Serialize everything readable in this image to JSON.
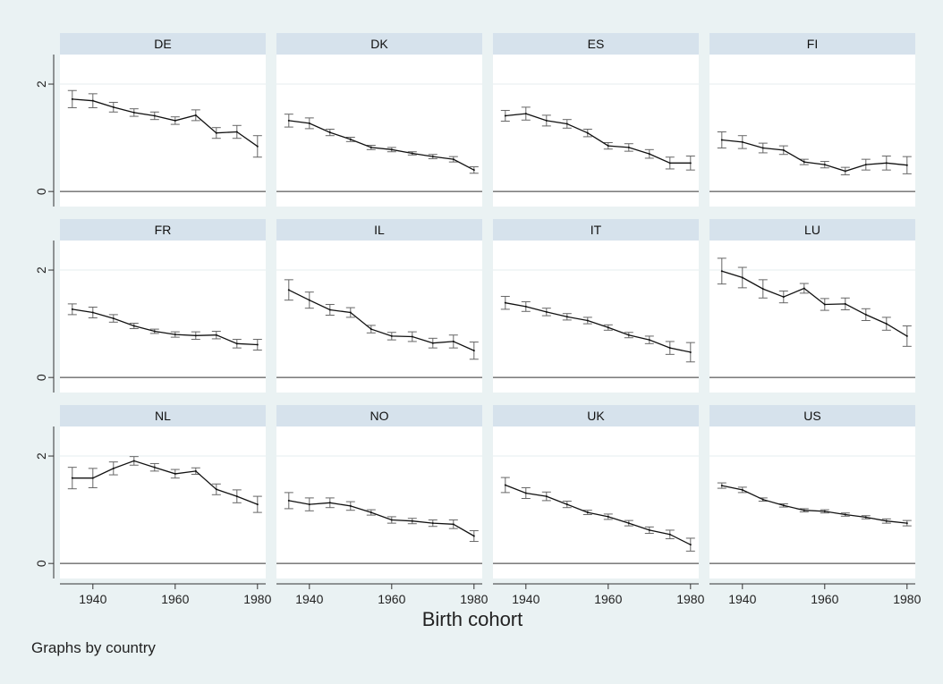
{
  "chart_data": {
    "type": "line",
    "xlabel": "Birth cohort",
    "note": "Graphs by country",
    "x": [
      1935,
      1940,
      1945,
      1950,
      1955,
      1960,
      1965,
      1970,
      1975,
      1980
    ],
    "xticks": [
      1940,
      1960,
      1980
    ],
    "xlim": [
      1932,
      1982
    ],
    "yticks": [
      0,
      2
    ],
    "ylim": [
      -0.28,
      2.55
    ],
    "grid": true,
    "error_bars": true,
    "panels": [
      {
        "name": "DE",
        "values": [
          1.72,
          1.69,
          1.57,
          1.47,
          1.41,
          1.32,
          1.42,
          1.09,
          1.11,
          0.84
        ],
        "lower": [
          1.56,
          1.56,
          1.48,
          1.4,
          1.34,
          1.25,
          1.32,
          0.99,
          0.99,
          0.64
        ],
        "upper": [
          1.88,
          1.82,
          1.66,
          1.54,
          1.48,
          1.39,
          1.52,
          1.19,
          1.23,
          1.04
        ]
      },
      {
        "name": "DK",
        "values": [
          1.32,
          1.27,
          1.1,
          0.97,
          0.82,
          0.78,
          0.71,
          0.65,
          0.6,
          0.4
        ],
        "lower": [
          1.2,
          1.17,
          1.04,
          0.93,
          0.78,
          0.74,
          0.68,
          0.61,
          0.55,
          0.34
        ],
        "upper": [
          1.44,
          1.37,
          1.16,
          1.01,
          0.86,
          0.82,
          0.74,
          0.69,
          0.65,
          0.46
        ]
      },
      {
        "name": "ES",
        "values": [
          1.41,
          1.45,
          1.32,
          1.26,
          1.09,
          0.85,
          0.82,
          0.7,
          0.53,
          0.53
        ],
        "lower": [
          1.31,
          1.33,
          1.22,
          1.18,
          1.02,
          0.79,
          0.75,
          0.62,
          0.42,
          0.4
        ],
        "upper": [
          1.51,
          1.57,
          1.42,
          1.34,
          1.16,
          0.91,
          0.89,
          0.78,
          0.64,
          0.66
        ]
      },
      {
        "name": "FI",
        "values": [
          0.96,
          0.92,
          0.81,
          0.77,
          0.55,
          0.5,
          0.38,
          0.5,
          0.53,
          0.49
        ],
        "lower": [
          0.81,
          0.8,
          0.72,
          0.69,
          0.5,
          0.44,
          0.31,
          0.4,
          0.4,
          0.33
        ],
        "upper": [
          1.11,
          1.04,
          0.9,
          0.85,
          0.6,
          0.56,
          0.45,
          0.6,
          0.66,
          0.65
        ]
      },
      {
        "name": "FR",
        "values": [
          1.27,
          1.21,
          1.1,
          0.96,
          0.86,
          0.8,
          0.78,
          0.79,
          0.63,
          0.61
        ],
        "lower": [
          1.17,
          1.11,
          1.03,
          0.91,
          0.82,
          0.75,
          0.71,
          0.72,
          0.55,
          0.51
        ],
        "upper": [
          1.37,
          1.31,
          1.17,
          1.01,
          0.9,
          0.85,
          0.85,
          0.86,
          0.71,
          0.71
        ]
      },
      {
        "name": "IL",
        "values": [
          1.63,
          1.44,
          1.26,
          1.21,
          0.9,
          0.77,
          0.76,
          0.64,
          0.67,
          0.5
        ],
        "lower": [
          1.44,
          1.29,
          1.16,
          1.12,
          0.83,
          0.7,
          0.67,
          0.55,
          0.55,
          0.34
        ],
        "upper": [
          1.82,
          1.59,
          1.36,
          1.3,
          0.97,
          0.84,
          0.85,
          0.73,
          0.79,
          0.66
        ]
      },
      {
        "name": "IT",
        "values": [
          1.39,
          1.32,
          1.22,
          1.13,
          1.06,
          0.93,
          0.79,
          0.7,
          0.55,
          0.47
        ],
        "lower": [
          1.27,
          1.23,
          1.15,
          1.07,
          1.0,
          0.88,
          0.74,
          0.63,
          0.43,
          0.29
        ],
        "upper": [
          1.51,
          1.41,
          1.29,
          1.19,
          1.12,
          0.98,
          0.84,
          0.77,
          0.67,
          0.65
        ]
      },
      {
        "name": "LU",
        "values": [
          1.98,
          1.86,
          1.65,
          1.5,
          1.66,
          1.36,
          1.37,
          1.17,
          1.0,
          0.77
        ],
        "lower": [
          1.74,
          1.67,
          1.48,
          1.39,
          1.57,
          1.25,
          1.26,
          1.06,
          0.88,
          0.58
        ],
        "upper": [
          2.22,
          2.05,
          1.82,
          1.61,
          1.75,
          1.47,
          1.48,
          1.28,
          1.12,
          0.96
        ]
      },
      {
        "name": "NL",
        "values": [
          1.59,
          1.59,
          1.77,
          1.91,
          1.79,
          1.67,
          1.72,
          1.38,
          1.25,
          1.1
        ],
        "lower": [
          1.39,
          1.41,
          1.65,
          1.83,
          1.72,
          1.59,
          1.66,
          1.28,
          1.13,
          0.95
        ],
        "upper": [
          1.79,
          1.77,
          1.89,
          1.99,
          1.86,
          1.75,
          1.78,
          1.48,
          1.37,
          1.25
        ]
      },
      {
        "name": "NO",
        "values": [
          1.17,
          1.1,
          1.13,
          1.07,
          0.95,
          0.81,
          0.79,
          0.75,
          0.73,
          0.51
        ],
        "lower": [
          1.02,
          0.98,
          1.04,
          0.99,
          0.9,
          0.75,
          0.74,
          0.69,
          0.65,
          0.41
        ],
        "upper": [
          1.32,
          1.22,
          1.22,
          1.15,
          1.0,
          0.87,
          0.84,
          0.81,
          0.81,
          0.61
        ]
      },
      {
        "name": "UK",
        "values": [
          1.46,
          1.31,
          1.25,
          1.1,
          0.95,
          0.87,
          0.75,
          0.62,
          0.54,
          0.35
        ],
        "lower": [
          1.32,
          1.21,
          1.17,
          1.04,
          0.91,
          0.82,
          0.7,
          0.56,
          0.46,
          0.23
        ],
        "upper": [
          1.6,
          1.41,
          1.33,
          1.16,
          0.99,
          0.92,
          0.8,
          0.68,
          0.62,
          0.47
        ]
      },
      {
        "name": "US",
        "values": [
          1.45,
          1.37,
          1.19,
          1.08,
          0.99,
          0.97,
          0.91,
          0.86,
          0.79,
          0.75
        ],
        "lower": [
          1.4,
          1.32,
          1.16,
          1.05,
          0.96,
          0.94,
          0.88,
          0.83,
          0.75,
          0.7
        ],
        "upper": [
          1.5,
          1.42,
          1.22,
          1.11,
          1.02,
          1.0,
          0.94,
          0.89,
          0.83,
          0.8
        ]
      }
    ]
  }
}
